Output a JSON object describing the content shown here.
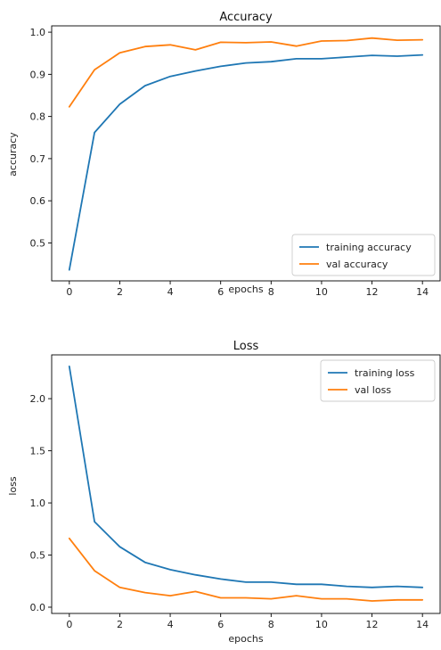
{
  "chart_data": [
    {
      "type": "line",
      "title": "Accuracy",
      "xlabel": "epochs",
      "ylabel": "accuracy",
      "x": [
        0,
        1,
        2,
        3,
        4,
        5,
        6,
        7,
        8,
        9,
        10,
        11,
        12,
        13,
        14
      ],
      "xlim": [
        -0.7,
        14.7
      ],
      "ylim": [
        0.41,
        1.015
      ],
      "xticks": [
        0,
        2,
        4,
        6,
        8,
        10,
        12,
        14
      ],
      "yticks": [
        0.5,
        0.6,
        0.7,
        0.8,
        0.9,
        1.0
      ],
      "ytick_labels": [
        "0.5",
        "0.6",
        "0.7",
        "0.8",
        "0.9",
        "1.0"
      ],
      "grid": false,
      "legend_position": "bottom-right",
      "series": [
        {
          "name": "training accuracy",
          "color": "#1f77b4",
          "values": [
            0.436,
            0.762,
            0.829,
            0.873,
            0.895,
            0.908,
            0.919,
            0.927,
            0.93,
            0.937,
            0.937,
            0.941,
            0.945,
            0.943,
            0.946
          ]
        },
        {
          "name": "val accuracy",
          "color": "#ff7f0e",
          "values": [
            0.823,
            0.911,
            0.951,
            0.966,
            0.97,
            0.958,
            0.976,
            0.975,
            0.977,
            0.967,
            0.979,
            0.98,
            0.986,
            0.981,
            0.982
          ]
        }
      ]
    },
    {
      "type": "line",
      "title": "Loss",
      "xlabel": "epochs",
      "ylabel": "loss",
      "x": [
        0,
        1,
        2,
        3,
        4,
        5,
        6,
        7,
        8,
        9,
        10,
        11,
        12,
        13,
        14
      ],
      "xlim": [
        -0.7,
        14.7
      ],
      "ylim": [
        -0.06,
        2.42
      ],
      "xticks": [
        0,
        2,
        4,
        6,
        8,
        10,
        12,
        14
      ],
      "yticks": [
        0.0,
        0.5,
        1.0,
        1.5,
        2.0
      ],
      "ytick_labels": [
        "0.0",
        "0.5",
        "1.0",
        "1.5",
        "2.0"
      ],
      "grid": false,
      "legend_position": "top-right",
      "series": [
        {
          "name": "training loss",
          "color": "#1f77b4",
          "values": [
            2.31,
            0.82,
            0.58,
            0.43,
            0.36,
            0.31,
            0.27,
            0.24,
            0.24,
            0.22,
            0.22,
            0.2,
            0.19,
            0.2,
            0.19
          ]
        },
        {
          "name": "val loss",
          "color": "#ff7f0e",
          "values": [
            0.66,
            0.35,
            0.19,
            0.14,
            0.11,
            0.15,
            0.09,
            0.09,
            0.08,
            0.11,
            0.08,
            0.08,
            0.06,
            0.07,
            0.07
          ]
        }
      ]
    }
  ]
}
